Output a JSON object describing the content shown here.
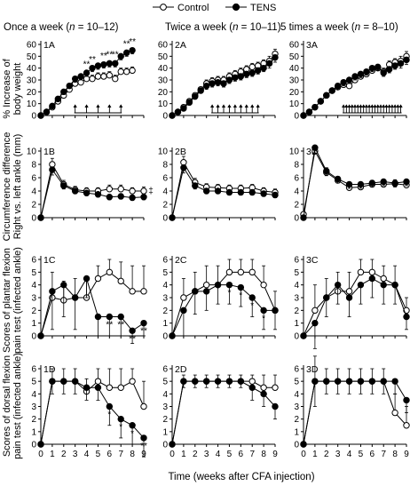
{
  "legend": {
    "items": [
      {
        "label": "Control",
        "marker": "open-circle"
      },
      {
        "label": "TENS",
        "marker": "filled-circle"
      }
    ]
  },
  "columns": [
    {
      "prefix": "Once a week (",
      "n_label": "n",
      "suffix": " = 10–12)"
    },
    {
      "prefix": "Twice a week (",
      "n_label": "n",
      "suffix": " = 10–11)"
    },
    {
      "prefix": "5 times a week (",
      "n_label": "n",
      "suffix": " = 8–10)"
    }
  ],
  "row_ylabels": [
    [
      "% Increase of",
      "body weight"
    ],
    [
      "Circumference difference",
      "Right vs. left ankle (mm)"
    ],
    [
      "Scores of plantar flexion",
      "pain test (infected ankle)"
    ],
    [
      "Scores of dorsal flexion",
      "pain test (infected ankle)"
    ]
  ],
  "row_yticks": [
    [
      0,
      10,
      20,
      30,
      40,
      50,
      60
    ],
    [
      0,
      2,
      4,
      6,
      8,
      10
    ],
    [
      0,
      1,
      2,
      3,
      4,
      5,
      6
    ],
    [
      0,
      1,
      2,
      3,
      4,
      5,
      6
    ]
  ],
  "row_ylim": [
    [
      0,
      60
    ],
    [
      0,
      10
    ],
    [
      0,
      6
    ],
    [
      0,
      6
    ]
  ],
  "xticks": [
    0,
    1,
    2,
    3,
    4,
    5,
    6,
    7,
    8,
    9
  ],
  "xlabel": "Time (weeks after CFA injection)",
  "colors": {
    "axis": "#000000",
    "control_fill": "#ffffff",
    "tens_fill": "#000000"
  },
  "chart_data": [
    {
      "type": "line",
      "id": "1A",
      "x": [
        0,
        0.5,
        1,
        1.5,
        2,
        2.5,
        3,
        3.5,
        4,
        4.5,
        5,
        5.5,
        6,
        6.5,
        7,
        7.5,
        8
      ],
      "series": [
        {
          "name": "Control",
          "values": [
            0,
            3,
            7,
            12,
            17,
            22,
            27,
            28,
            31,
            31,
            33,
            33,
            34,
            31,
            37,
            37,
            38
          ],
          "err": [
            1,
            1,
            1,
            2,
            2,
            2,
            3,
            3,
            3,
            3,
            3,
            3,
            3,
            3,
            3,
            3,
            3
          ]
        },
        {
          "name": "TENS",
          "values": [
            0,
            3,
            8,
            14,
            20,
            25,
            31,
            33,
            36,
            40,
            42,
            43,
            44,
            44,
            50,
            53,
            55
          ],
          "err": [
            1,
            1,
            1,
            2,
            2,
            2,
            3,
            3,
            3,
            3,
            3,
            3,
            3,
            3,
            3,
            3,
            3
          ]
        }
      ],
      "annotations": [
        {
          "x": 4,
          "text": "**"
        },
        {
          "x": 4.5,
          "text": "**"
        },
        {
          "x": 5.5,
          "text": "**"
        },
        {
          "x": 6,
          "text": "**"
        },
        {
          "x": 6.5,
          "text": "**"
        },
        {
          "x": 7.5,
          "text": "**"
        },
        {
          "x": 8,
          "text": "**"
        }
      ],
      "tens_marks": [
        3,
        4,
        5,
        6,
        7
      ],
      "ylim": [
        0,
        60
      ]
    },
    {
      "type": "line",
      "id": "2A",
      "x": [
        0,
        0.5,
        1,
        1.5,
        2,
        2.5,
        3,
        3.5,
        4,
        4.5,
        5,
        5.5,
        6,
        6.5,
        7,
        7.5,
        8,
        8.5,
        9
      ],
      "series": [
        {
          "name": "Control",
          "values": [
            0,
            3,
            7,
            12,
            17,
            22,
            27,
            29,
            30,
            30,
            33,
            35,
            37,
            39,
            41,
            42,
            44,
            46,
            52
          ],
          "err": [
            1,
            1,
            1,
            2,
            2,
            2,
            3,
            3,
            3,
            3,
            3,
            3,
            3,
            3,
            3,
            3,
            3,
            4,
            4
          ]
        },
        {
          "name": "TENS",
          "values": [
            0,
            3,
            6,
            11,
            16,
            21,
            25,
            27,
            28,
            27,
            30,
            32,
            33,
            35,
            36,
            38,
            40,
            44,
            49
          ],
          "err": [
            1,
            1,
            1,
            2,
            2,
            2,
            3,
            3,
            3,
            3,
            3,
            3,
            3,
            3,
            3,
            3,
            3,
            4,
            4
          ]
        }
      ],
      "annotations": [],
      "tens_marks": [
        3.5,
        4,
        4.5,
        5,
        5.5,
        6,
        6.5,
        7,
        7.5
      ],
      "ylim": [
        0,
        60
      ]
    },
    {
      "type": "line",
      "id": "3A",
      "x": [
        0,
        0.5,
        1,
        1.5,
        2,
        2.5,
        3,
        3.5,
        4,
        4.5,
        5,
        5.5,
        6,
        6.5,
        7,
        7.5,
        8,
        8.5,
        9
      ],
      "series": [
        {
          "name": "Control",
          "values": [
            0,
            3,
            7,
            12,
            17,
            21,
            24,
            26,
            25,
            30,
            33,
            35,
            38,
            40,
            37,
            43,
            45,
            46,
            50
          ],
          "err": [
            1,
            1,
            1,
            2,
            2,
            2,
            3,
            3,
            6,
            3,
            3,
            3,
            3,
            3,
            3,
            3,
            3,
            4,
            4
          ]
        },
        {
          "name": "TENS",
          "values": [
            0,
            3,
            7,
            12,
            17,
            21,
            25,
            28,
            30,
            33,
            35,
            37,
            40,
            41,
            36,
            39,
            42,
            44,
            47
          ],
          "err": [
            1,
            1,
            1,
            2,
            2,
            2,
            3,
            3,
            3,
            3,
            3,
            3,
            3,
            3,
            3,
            3,
            3,
            4,
            4
          ]
        }
      ],
      "annotations": [],
      "tens_marks": [
        3.5,
        3.75,
        4,
        4.25,
        4.5,
        4.75,
        5,
        5.25,
        5.5,
        5.75,
        6,
        6.25,
        6.5,
        6.75,
        7,
        7.25,
        7.5,
        7.75,
        8,
        8.25,
        8.5
      ],
      "ylim": [
        0,
        60
      ]
    },
    {
      "type": "line",
      "id": "1B",
      "x": [
        0,
        1,
        2,
        3,
        4,
        5,
        6,
        7,
        8,
        9
      ],
      "series": [
        {
          "name": "Control",
          "values": [
            0,
            8,
            5,
            4.2,
            4,
            4,
            4.3,
            4.3,
            4,
            4
          ],
          "err": [
            0.2,
            0.9,
            0.6,
            0.5,
            0.5,
            0.5,
            0.6,
            0.6,
            0.5,
            0.6
          ]
        },
        {
          "name": "TENS",
          "values": [
            0,
            7.2,
            4.8,
            4,
            3.7,
            3.5,
            3.1,
            3.2,
            3,
            3.1
          ],
          "err": [
            0.2,
            0.8,
            0.5,
            0.4,
            0.4,
            0.4,
            0.4,
            0.4,
            0.4,
            0.4
          ]
        }
      ],
      "annotations": [
        {
          "x": 9,
          "text": "‡"
        }
      ],
      "ylim": [
        0,
        10
      ]
    },
    {
      "type": "line",
      "id": "2B",
      "x": [
        0,
        1,
        2,
        3,
        4,
        5,
        6,
        7,
        8,
        9
      ],
      "series": [
        {
          "name": "Control",
          "values": [
            0,
            8.3,
            5.3,
            4.6,
            4.5,
            4.4,
            4.4,
            4.5,
            4,
            3.8
          ],
          "err": [
            0.2,
            0.9,
            0.6,
            0.5,
            0.5,
            0.5,
            0.5,
            0.5,
            0.5,
            0.5
          ]
        },
        {
          "name": "TENS",
          "values": [
            0,
            7.5,
            4.8,
            4,
            4,
            3.8,
            3.8,
            3.8,
            3.6,
            3.4
          ],
          "err": [
            0.2,
            0.8,
            0.5,
            0.4,
            0.4,
            0.4,
            0.4,
            0.4,
            0.4,
            0.4
          ]
        }
      ],
      "annotations": [],
      "ylim": [
        0,
        10
      ]
    },
    {
      "type": "line",
      "id": "3B",
      "x": [
        0,
        1,
        2,
        3,
        4,
        5,
        6,
        7,
        8,
        9
      ],
      "series": [
        {
          "name": "Control",
          "values": [
            0.5,
            10,
            6.8,
            5.6,
            4.5,
            4.6,
            5,
            5,
            5.1,
            4.9
          ],
          "err": [
            0.3,
            0.8,
            0.7,
            0.6,
            0.6,
            0.6,
            0.6,
            0.6,
            0.6,
            0.6
          ]
        },
        {
          "name": "TENS",
          "values": [
            0,
            10.5,
            7,
            5.8,
            5,
            5,
            5.2,
            5.4,
            5.2,
            5.4
          ],
          "err": [
            0.3,
            0.8,
            0.7,
            0.6,
            0.6,
            0.6,
            0.6,
            0.6,
            0.6,
            0.6
          ]
        }
      ],
      "annotations": [],
      "ylim": [
        0,
        10
      ]
    },
    {
      "type": "line",
      "id": "1C",
      "x": [
        0,
        1,
        2,
        3,
        4,
        5,
        6,
        7,
        8,
        9
      ],
      "series": [
        {
          "name": "Control",
          "values": [
            0,
            3,
            2.8,
            3,
            3,
            4.5,
            5,
            4.3,
            3.5,
            3.5
          ],
          "err": [
            0,
            2,
            1.5,
            1.5,
            1.5,
            1,
            1,
            1.5,
            2,
            2
          ]
        },
        {
          "name": "TENS",
          "values": [
            0,
            3.5,
            4,
            3,
            4.5,
            1.5,
            1.5,
            1.5,
            0.4,
            1
          ],
          "err": [
            0,
            3,
            2.5,
            2.5,
            1.5,
            1.5,
            1.5,
            1.5,
            1,
            1
          ]
        }
      ],
      "annotations": [
        {
          "x": 6,
          "text": "**"
        },
        {
          "x": 7,
          "text": "**"
        },
        {
          "x": 8,
          "text": "**"
        },
        {
          "x": 9,
          "text": "**"
        }
      ],
      "ylim": [
        0,
        6
      ]
    },
    {
      "type": "line",
      "id": "2C",
      "x": [
        0,
        1,
        2,
        3,
        4,
        5,
        6,
        7,
        8,
        9
      ],
      "series": [
        {
          "name": "Control",
          "values": [
            0,
            3,
            3.5,
            4,
            4,
            5,
            5,
            5,
            4,
            2
          ],
          "err": [
            0,
            1.5,
            1.5,
            1.5,
            1.5,
            1,
            1,
            1,
            1.5,
            1.5
          ]
        },
        {
          "name": "TENS",
          "values": [
            0,
            2,
            3.5,
            3.5,
            4,
            4,
            3.8,
            3,
            2,
            2
          ],
          "err": [
            0,
            2,
            1.8,
            1.5,
            1.5,
            1.5,
            1.5,
            1.5,
            1.5,
            1.5
          ]
        }
      ],
      "annotations": [
        {
          "x": 5,
          "text": "*"
        },
        {
          "x": 6,
          "text": "*"
        },
        {
          "x": 7,
          "text": "*"
        },
        {
          "x": 8,
          "text": "*"
        }
      ],
      "ylim": [
        0,
        6
      ]
    },
    {
      "type": "line",
      "id": "3C",
      "x": [
        0,
        1,
        2,
        3,
        4,
        5,
        6,
        7,
        8,
        9
      ],
      "series": [
        {
          "name": "Control",
          "values": [
            0,
            2,
            3,
            3.5,
            3.5,
            5,
            5,
            4.5,
            4,
            2
          ],
          "err": [
            0,
            2,
            1.5,
            1.5,
            1.5,
            1,
            1,
            1,
            1.5,
            1
          ]
        },
        {
          "name": "TENS",
          "values": [
            0,
            1,
            3,
            4,
            3,
            4,
            4.5,
            4,
            4,
            1.5
          ],
          "err": [
            0,
            2,
            1.5,
            1.5,
            1.5,
            1.5,
            1.5,
            1.5,
            1.5,
            1
          ]
        }
      ],
      "annotations": [],
      "ylim": [
        0,
        6
      ]
    },
    {
      "type": "line",
      "id": "1D",
      "x": [
        0,
        1,
        2,
        3,
        4,
        5,
        6,
        7,
        8,
        9
      ],
      "series": [
        {
          "name": "Control",
          "values": [
            0,
            5,
            5,
            5,
            4.2,
            5,
            4.5,
            4.5,
            5,
            3
          ],
          "err": [
            0,
            1,
            1,
            1,
            1,
            1,
            1.5,
            1.5,
            1,
            2
          ]
        },
        {
          "name": "TENS",
          "values": [
            0,
            5,
            5,
            5,
            4.5,
            4.5,
            3,
            2,
            1.5,
            0.5
          ],
          "err": [
            0,
            1,
            1,
            1,
            1,
            1,
            1.5,
            1.5,
            1.5,
            1.5
          ]
        }
      ],
      "annotations": [
        {
          "x": 6,
          "text": "*"
        },
        {
          "x": 7,
          "text": "*"
        },
        {
          "x": 8,
          "text": "*"
        },
        {
          "x": 9,
          "text": "**"
        }
      ],
      "ylim": [
        0,
        6
      ]
    },
    {
      "type": "line",
      "id": "2D",
      "x": [
        0,
        1,
        2,
        3,
        4,
        5,
        6,
        7,
        8,
        9
      ],
      "series": [
        {
          "name": "Control",
          "values": [
            0,
            5,
            5,
            5,
            5,
            5,
            5,
            5,
            4.5,
            4.5
          ],
          "err": [
            0,
            0.5,
            0.5,
            0.5,
            0.5,
            0.5,
            0.5,
            0.5,
            1,
            1
          ]
        },
        {
          "name": "TENS",
          "values": [
            0,
            5,
            5,
            5,
            5,
            5,
            5,
            4.5,
            4,
            3
          ],
          "err": [
            0,
            0.5,
            0.5,
            0.5,
            0.5,
            0.5,
            0.5,
            1,
            1,
            1
          ]
        }
      ],
      "annotations": [],
      "ylim": [
        0,
        6
      ]
    },
    {
      "type": "line",
      "id": "3D",
      "x": [
        0,
        1,
        2,
        3,
        4,
        5,
        6,
        7,
        8,
        9
      ],
      "series": [
        {
          "name": "Control",
          "values": [
            0,
            5,
            5,
            5,
            5,
            5,
            5,
            5,
            2.5,
            1.5
          ],
          "err": [
            0,
            2,
            1,
            1,
            1,
            1,
            1,
            1,
            1.5,
            1.5
          ]
        },
        {
          "name": "TENS",
          "values": [
            0,
            5,
            5,
            5,
            5,
            5,
            5,
            5,
            5,
            3.5
          ],
          "err": [
            0,
            2,
            1,
            1,
            1,
            1,
            1,
            1,
            1,
            1
          ]
        }
      ],
      "annotations": [],
      "ylim": [
        0,
        6
      ]
    }
  ]
}
